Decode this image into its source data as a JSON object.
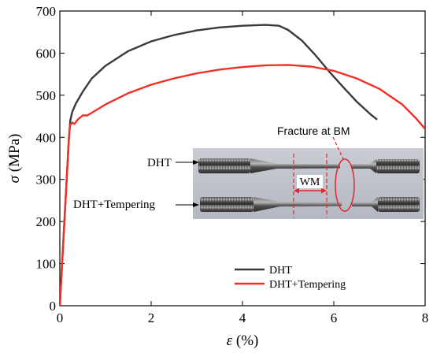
{
  "chart_data": {
    "type": "line",
    "xlabel_symbol": "ε",
    "xlabel_unit": " (%)",
    "ylabel_symbol": "σ",
    "ylabel_unit": " (MPa)",
    "xlim": [
      0,
      8
    ],
    "ylim": [
      0,
      700
    ],
    "x_ticks": [
      0,
      2,
      4,
      6,
      8
    ],
    "y_ticks": [
      0,
      100,
      200,
      300,
      400,
      500,
      600,
      700
    ],
    "grid": false,
    "legend_position": "bottom-right",
    "series": [
      {
        "name": "DHT",
        "color": "#3a3a3a",
        "x": [
          0,
          0.05,
          0.1,
          0.15,
          0.2,
          0.23,
          0.27,
          0.35,
          0.5,
          0.7,
          1.0,
          1.5,
          2.0,
          2.5,
          3.0,
          3.5,
          4.0,
          4.5,
          4.8,
          5.0,
          5.3,
          5.6,
          5.9,
          6.2,
          6.5,
          6.8,
          6.95
        ],
        "y": [
          0,
          100,
          200,
          300,
          400,
          440,
          460,
          480,
          508,
          540,
          570,
          605,
          628,
          643,
          654,
          661,
          665,
          667,
          665,
          655,
          630,
          595,
          556,
          520,
          485,
          455,
          442
        ]
      },
      {
        "name": "DHT+Tempering",
        "color": "#ee3124",
        "x": [
          0,
          0.05,
          0.1,
          0.15,
          0.2,
          0.22,
          0.27,
          0.32,
          0.4,
          0.5,
          0.6,
          0.8,
          1.0,
          1.5,
          2.0,
          2.5,
          3.0,
          3.5,
          4.0,
          4.5,
          5.0,
          5.5,
          6.0,
          6.5,
          7.0,
          7.5,
          7.8,
          8.0
        ],
        "y": [
          0,
          100,
          200,
          300,
          400,
          428,
          435,
          432,
          443,
          452,
          452,
          465,
          478,
          505,
          525,
          540,
          552,
          561,
          567,
          571,
          572,
          568,
          558,
          540,
          515,
          478,
          445,
          420
        ]
      }
    ]
  },
  "inset": {
    "label_dht": "DHT",
    "label_tempering": "DHT+Tempering",
    "wm_label": "WM",
    "fracture_label": "Fracture at BM"
  }
}
